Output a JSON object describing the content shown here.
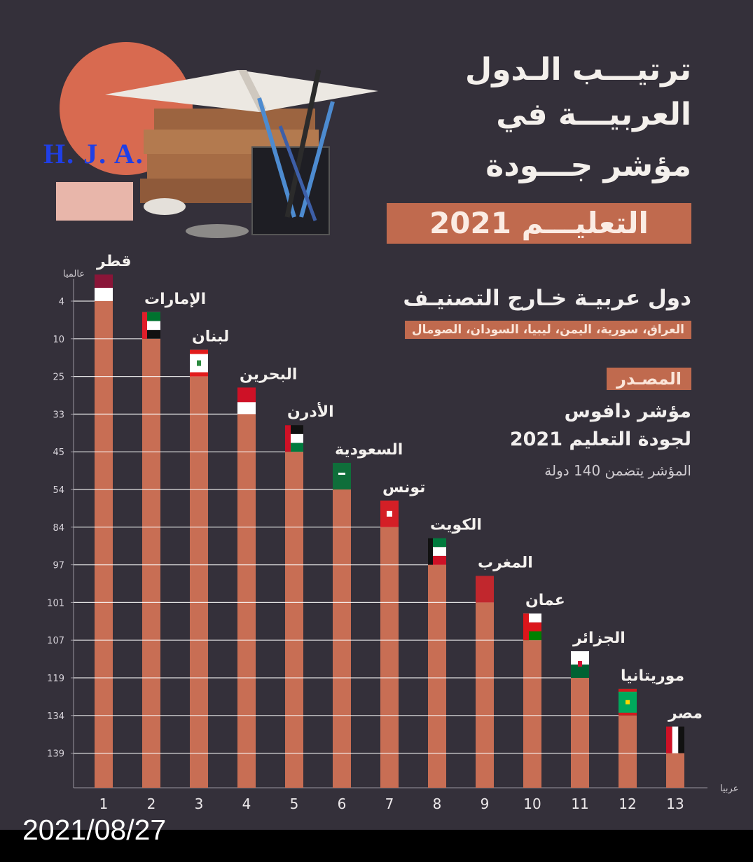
{
  "title": {
    "line1": "ترتيـــب الـدول",
    "line2": "العربيـــة في",
    "line3": "مؤشر جـــودة",
    "line4": "التعليـــم 2021"
  },
  "watermark": "H. J. A.",
  "outside": {
    "title": "دول عربيـة خـارج التصنيـف",
    "list": "العراق، سورية، اليمن، ليبيا، السودان، الصومال"
  },
  "source": {
    "label": "المصـدر",
    "line1": "مؤشر دافوس",
    "line2": "لجودة التعليم 2021",
    "note": "المؤشر يتضمن 140 دولة"
  },
  "date": "2021/08/27",
  "colors": {
    "background": "#34303a",
    "bar": "#c86e54",
    "accent": "#c06a4e"
  },
  "chart_data": {
    "type": "bar",
    "ylabel": "عالميا",
    "xlabel": "عربيا",
    "categories": [
      "قطر",
      "الإمارات",
      "لبنان",
      "البحرين",
      "الأدرن",
      "السعودية",
      "تونس",
      "الكويت",
      "المغرب",
      "عمان",
      "الجزائر",
      "موريتانيا",
      "مصر"
    ],
    "arab_rank": [
      1,
      2,
      3,
      4,
      5,
      6,
      7,
      8,
      9,
      10,
      11,
      12,
      13
    ],
    "world_rank": [
      4,
      10,
      25,
      33,
      45,
      54,
      84,
      97,
      101,
      107,
      119,
      134,
      139
    ],
    "y_ticks": [
      4,
      10,
      25,
      33,
      45,
      54,
      84,
      97,
      101,
      107,
      119,
      134,
      139
    ],
    "flag_icons": [
      "qatar-flag-icon",
      "uae-flag-icon",
      "lebanon-flag-icon",
      "bahrain-flag-icon",
      "jordan-flag-icon",
      "saudi-flag-icon",
      "tunisia-flag-icon",
      "kuwait-flag-icon",
      "morocco-flag-icon",
      "oman-flag-icon",
      "algeria-flag-icon",
      "mauritania-flag-icon",
      "egypt-flag-icon"
    ]
  }
}
